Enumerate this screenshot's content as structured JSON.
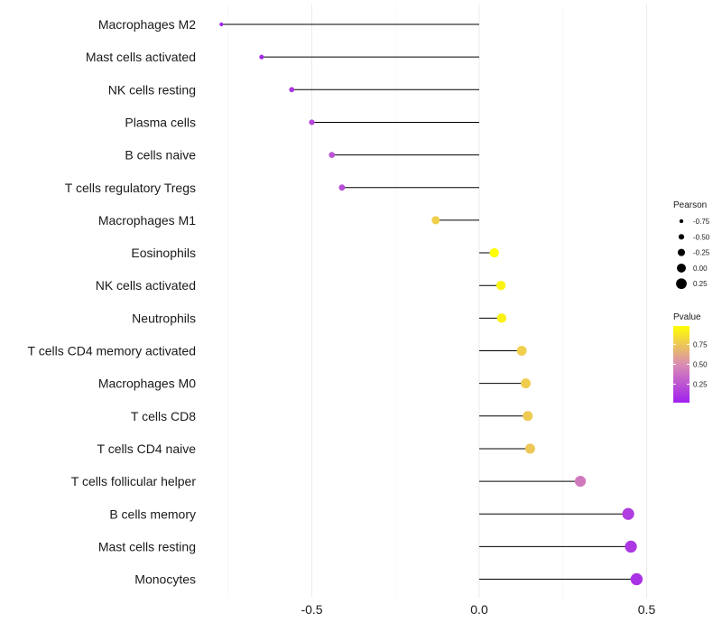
{
  "chart_data": {
    "type": "lollipop",
    "categories": [
      "Macrophages M2",
      "Mast cells activated",
      "NK cells resting",
      "Plasma cells",
      "B cells naive",
      "T cells regulatory  Tregs",
      "Macrophages M1",
      "Eosinophils",
      "NK cells activated",
      "Neutrophils",
      "T cells CD4 memory activated",
      "Macrophages M0",
      "T cells CD8",
      "T cells CD4 naive",
      "T cells follicular helper",
      "B cells memory",
      "Mast cells resting",
      "Monocytes"
    ],
    "values": [
      -0.77,
      -0.65,
      -0.56,
      -0.5,
      -0.44,
      -0.41,
      -0.13,
      0.045,
      0.065,
      0.067,
      0.127,
      0.139,
      0.145,
      0.152,
      0.302,
      0.445,
      0.453,
      0.47
    ],
    "pvalues": [
      0.03,
      0.06,
      0.12,
      0.2,
      0.25,
      0.22,
      0.78,
      0.98,
      0.93,
      0.92,
      0.78,
      0.77,
      0.76,
      0.75,
      0.42,
      0.15,
      0.12,
      0.1
    ],
    "xlim": [
      -0.8,
      0.5
    ],
    "xticks": [
      -0.5,
      0.0,
      0.5
    ],
    "xtick_labels": [
      "-0.5",
      "0.0",
      "0.5"
    ],
    "size_legend": {
      "title": "Pearson",
      "labels": [
        "-0.75",
        "-0.50",
        "-0.25",
        "0.00",
        "0.25"
      ],
      "values": [
        -0.75,
        -0.5,
        -0.25,
        0.0,
        0.25
      ]
    },
    "color_legend": {
      "title": "Pvalue",
      "labels": [
        "0.75",
        "0.50",
        "0.25"
      ],
      "values": [
        0.75,
        0.5,
        0.25
      ],
      "range": [
        0.02,
        0.98
      ],
      "colors": {
        "low": "#a020f0",
        "mid": "#d98cb3",
        "high": "#ffff00"
      }
    },
    "grid": true,
    "legend_position": "right"
  }
}
